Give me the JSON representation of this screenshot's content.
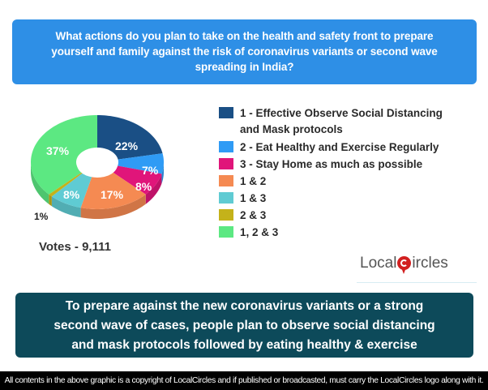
{
  "header": {
    "question_lines": [
      "What actions do you plan to take on the health and safety front to prepare",
      "yourself and family against the risk of coronavirus variants or second wave",
      "spreading in India?"
    ]
  },
  "chart_data": {
    "type": "pie",
    "title": "What actions do you plan to take on the health and safety front to prepare yourself and family against the risk of coronavirus variants or second wave spreading in India?",
    "categories": [
      "1 - Effective Observe Social Distancing and Mask protocols",
      "2 - Eat Healthy and Exercise Regularly",
      "3 - Stay Home as much as possible",
      "1 & 2",
      "1 & 3",
      "2 & 3",
      "1, 2 & 3"
    ],
    "values": [
      22,
      7,
      8,
      17,
      8,
      1,
      37
    ],
    "labels": [
      "22%",
      "7%",
      "8%",
      "17%",
      "8%",
      "1%",
      "37%"
    ],
    "colors": [
      "#1a4f85",
      "#2f9bf5",
      "#e0157a",
      "#f58a52",
      "#5fcbd3",
      "#c4b21a",
      "#5ce882"
    ],
    "style": "3d donut",
    "legend_position": "right",
    "annotation": "Votes - 9,111"
  },
  "legend": {
    "items": [
      {
        "label_lines": [
          "1 - Effective Observe Social Distancing",
          "and Mask protocols"
        ],
        "color": "#1a4f85"
      },
      {
        "label_lines": [
          "2 - Eat Healthy and Exercise Regularly"
        ],
        "color": "#2f9bf5"
      },
      {
        "label_lines": [
          "3 - Stay Home as much as possible"
        ],
        "color": "#e0157a"
      },
      {
        "label_lines": [
          "1 & 2"
        ],
        "color": "#f58a52"
      },
      {
        "label_lines": [
          "1 & 3"
        ],
        "color": "#5fcbd3"
      },
      {
        "label_lines": [
          "2 & 3"
        ],
        "color": "#c4b21a"
      },
      {
        "label_lines": [
          "1, 2 & 3"
        ],
        "color": "#5ce882"
      }
    ]
  },
  "votes": "Votes - 9,111",
  "logo": {
    "left": "Local",
    "right": "ircles"
  },
  "summary": {
    "lines": [
      "To prepare against the new coronavirus variants or a strong",
      "second wave of cases, people plan to observe social distancing",
      "and mask protocols followed by eating healthy & exercise"
    ]
  },
  "footer": {
    "text": "All contents in the above graphic is a copyright of LocalCircles and if published or broadcasted, must carry the LocalCircles logo along with it."
  }
}
